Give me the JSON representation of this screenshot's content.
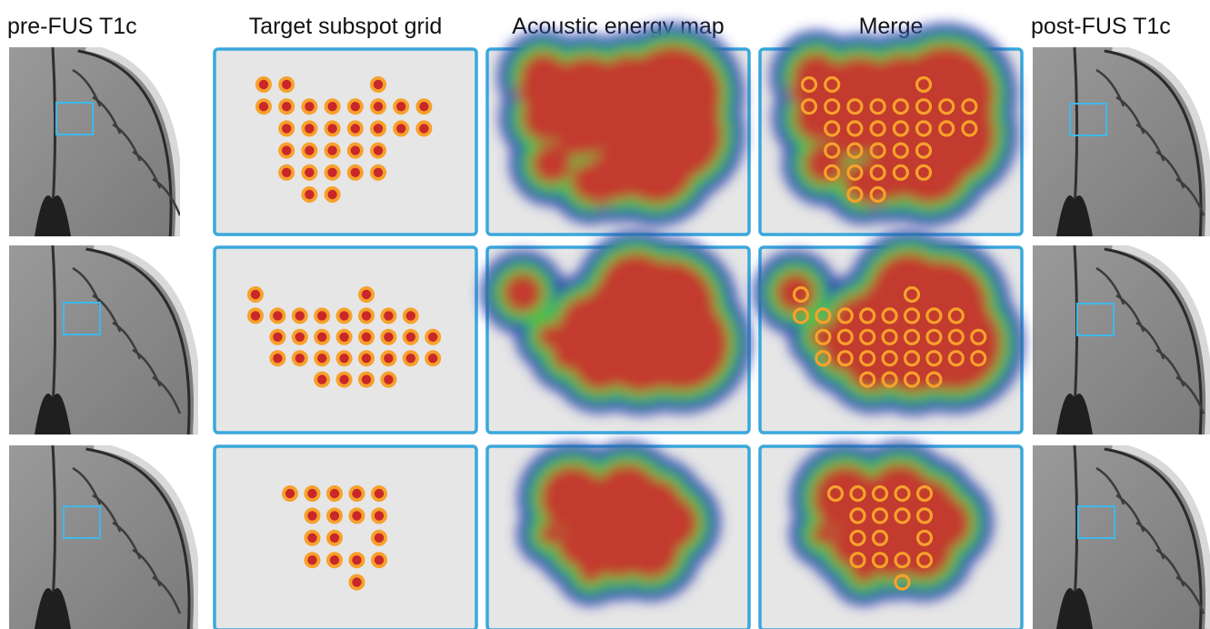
{
  "headers": {
    "pre_fus": "pre-FUS T1c",
    "target_grid": "Target subspot grid",
    "energy_map": "Acoustic energy map",
    "merge": "Merge",
    "post_fus": "post-FUS T1c"
  },
  "colors": {
    "panel_border": "#3aa8dc",
    "panel_fill": "#e6e6e6",
    "spot_ring": "#f7a12b",
    "spot_core": "#c8282a",
    "roi_box": "#3fb8ea",
    "energy_low": "#2b3cae",
    "energy_mid": "#46c24a",
    "energy_high": "#c23a2e"
  },
  "rows": [
    {
      "subspot_grid": [
        [
          1,
          1,
          0,
          0,
          0,
          1,
          0,
          0
        ],
        [
          1,
          1,
          1,
          1,
          1,
          1,
          1,
          1
        ],
        [
          0,
          1,
          1,
          1,
          1,
          1,
          1,
          1
        ],
        [
          0,
          1,
          1,
          1,
          1,
          1,
          0,
          0
        ],
        [
          0,
          1,
          1,
          1,
          1,
          1,
          0,
          0
        ],
        [
          0,
          0,
          1,
          1,
          0,
          0,
          0,
          0
        ]
      ]
    },
    {
      "subspot_grid": [
        [
          1,
          0,
          0,
          0,
          0,
          1,
          0,
          0,
          0
        ],
        [
          1,
          1,
          1,
          1,
          1,
          1,
          1,
          1,
          0
        ],
        [
          0,
          1,
          1,
          1,
          1,
          1,
          1,
          1,
          1
        ],
        [
          0,
          1,
          1,
          1,
          1,
          1,
          1,
          1,
          1
        ],
        [
          0,
          0,
          0,
          1,
          1,
          1,
          1,
          0,
          0
        ]
      ]
    },
    {
      "subspot_grid": [
        [
          1,
          1,
          1,
          1,
          1
        ],
        [
          0,
          1,
          1,
          1,
          1
        ],
        [
          0,
          1,
          1,
          0,
          1
        ],
        [
          0,
          1,
          1,
          1,
          1
        ],
        [
          0,
          0,
          0,
          1,
          0
        ]
      ]
    }
  ]
}
